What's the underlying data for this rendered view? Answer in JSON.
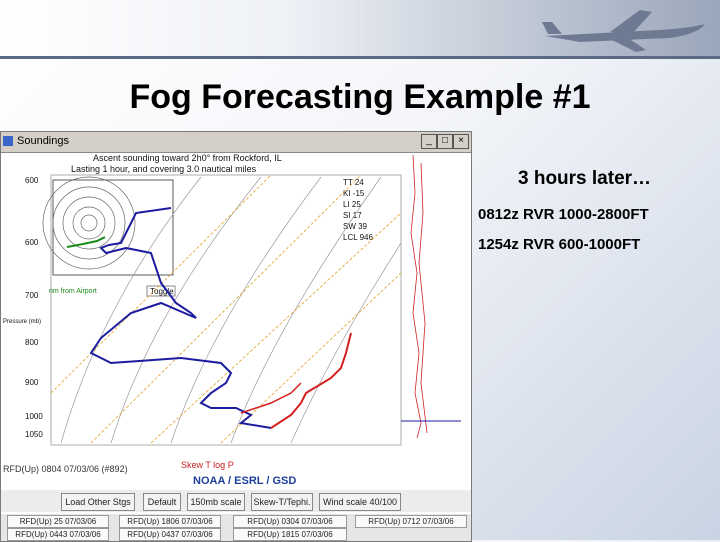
{
  "slide": {
    "title": "Fog Forecasting Example #1",
    "notes": {
      "headline": "3 hours later…",
      "line1": "0812z RVR 1000-2800FT",
      "line2": "1254z RVR 600-1000FT"
    }
  },
  "window": {
    "title": "Soundings",
    "controls": {
      "minimize": "_",
      "maximize": "□",
      "close": "×"
    },
    "header_line1": "Ascent sounding toward 2h0° from Rockford, IL",
    "header_line2": "Lasting 1 hour, and covering 3.0 nautical miles",
    "indices": [
      "TT 24",
      "KI -15",
      "LI 25",
      "SI 17",
      "SW 39",
      "LCL 946"
    ],
    "pressure_axis_title": "Pressure (mb)",
    "pressure_labels": [
      "600",
      "600",
      "700",
      "800",
      "900",
      "1000",
      "1050"
    ],
    "hodograph_legend": "nm from Airport",
    "toggle_label": "Toggle",
    "footnote": "RFD(Up) 0804 07/03/06 (#892)",
    "footnote_red": "Skew T log P",
    "agency": "NOAA / ESRL / GSD",
    "buttons": [
      "Load Other Stgs",
      "Default",
      "150mb scale",
      "Skew-T/Tephi.",
      "Wind scale 40/100"
    ],
    "soundings_row1": [
      "RFD(Up) 25 07/03/06",
      "RFD(Up) 1806 07/03/06",
      "RFD(Up) 0304 07/03/06",
      "RFD(Up) 0712 07/03/06"
    ],
    "soundings_row2": [
      "RFD(Up) 0443 07/03/06",
      "RFD(Up) 0437 07/03/06",
      "RFD(Up) 1815 07/03/06"
    ]
  },
  "colors": {
    "accent": "#1f3f9a",
    "temperature": "#d42020",
    "dewpoint": "#1c1ca0",
    "isotherm": "#e0a020",
    "dry_adiabat": "#888888"
  },
  "icons": [
    "plane-icon",
    "minimize-icon",
    "maximize-icon",
    "close-icon"
  ]
}
